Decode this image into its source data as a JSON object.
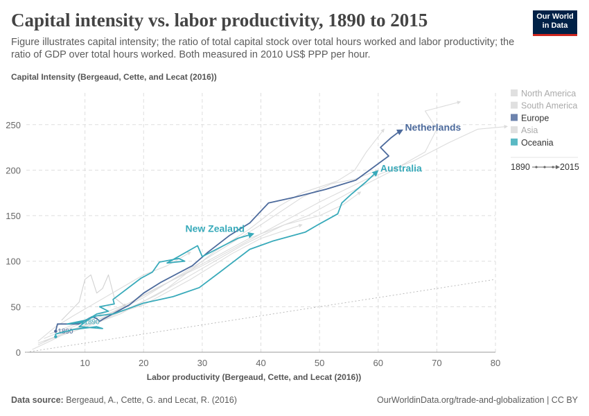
{
  "header": {
    "title": "Capital intensity vs. labor productivity, 1890 to 2015",
    "subtitle": "Figure illustrates capital intensity; the ratio of total capital stock over total hours worked and labor productivity; the ratio of GDP over total hours worked. Both measured in 2010 US$ PPP per hour.",
    "logo": "Our World in Data"
  },
  "footer": {
    "source_label": "Data source:",
    "source": "Bergeaud, A., Cette, G. and Lecat, R. (2016)",
    "url": "OurWorldinData.org/trade-and-globalization | CC BY"
  },
  "chart_data": {
    "type": "line",
    "xlabel": "Labor productivity (Bergeaud, Cette, and Lecat (2016))",
    "ylabel": "Capital Intensity (Bergeaud, Cette, and Lecat (2016))",
    "xlim": [
      0,
      80
    ],
    "ylim": [
      0,
      270
    ],
    "xticks": [
      10,
      20,
      30,
      40,
      50,
      60,
      70,
      80
    ],
    "yticks": [
      0,
      50,
      100,
      150,
      200,
      250
    ],
    "grid": true,
    "legend_placement": "right",
    "legend": [
      {
        "label": "North America",
        "color": "#e0e0e0",
        "active": false
      },
      {
        "label": "South America",
        "color": "#e0e0e0",
        "active": false
      },
      {
        "label": "Europe",
        "color": "#6d83ad",
        "active": true
      },
      {
        "label": "Asia",
        "color": "#e0e0e0",
        "active": false
      },
      {
        "label": "Oceania",
        "color": "#5ab9c4",
        "active": true
      }
    ],
    "timeline": {
      "start": "1890",
      "end": "2015"
    },
    "reference_line": "y = x",
    "series": [
      {
        "name": "Netherlands",
        "region": "Europe",
        "color": "#4c6a9c",
        "start_label": "1890",
        "points": [
          [
            5,
            23
          ],
          [
            5.3,
            31
          ],
          [
            8.9,
            31
          ],
          [
            11.2,
            39
          ],
          [
            12,
            37
          ],
          [
            12.5,
            34
          ],
          [
            13,
            36
          ],
          [
            15.3,
            44
          ],
          [
            17.6,
            52
          ],
          [
            20,
            65
          ],
          [
            23,
            77
          ],
          [
            28.3,
            95
          ],
          [
            31,
            110
          ],
          [
            34.6,
            128
          ],
          [
            38.1,
            142
          ],
          [
            41.3,
            164
          ],
          [
            45.6,
            170
          ],
          [
            51.1,
            179
          ],
          [
            56.2,
            189
          ],
          [
            61.8,
            215.5
          ],
          [
            60.4,
            225
          ],
          [
            62.1,
            235
          ],
          [
            63.5,
            242
          ],
          [
            64.1,
            244
          ]
        ]
      },
      {
        "name": "Australia",
        "region": "Oceania",
        "color": "#38aaba",
        "start_label": "1890",
        "points": [
          [
            9.5,
            33
          ],
          [
            7,
            31
          ],
          [
            10,
            35
          ],
          [
            12,
            40
          ],
          [
            14.8,
            42
          ],
          [
            17,
            47
          ],
          [
            20,
            54
          ],
          [
            25,
            61
          ],
          [
            29.5,
            71
          ],
          [
            33,
            88
          ],
          [
            38.1,
            113
          ],
          [
            42,
            122
          ],
          [
            47.6,
            132
          ],
          [
            50,
            141
          ],
          [
            53.1,
            152
          ],
          [
            53.8,
            164
          ],
          [
            55.5,
            174
          ],
          [
            57.9,
            187
          ],
          [
            59.9,
            199
          ]
        ]
      },
      {
        "name": "New Zealand",
        "region": "Oceania",
        "color": "#38aaba",
        "points": [
          [
            5,
            17
          ],
          [
            5,
            20
          ],
          [
            8,
            25
          ],
          [
            12,
            28
          ],
          [
            13,
            26
          ],
          [
            9,
            28
          ],
          [
            11,
            38
          ],
          [
            12,
            42
          ],
          [
            14,
            45
          ],
          [
            12.5,
            50
          ],
          [
            15,
            53
          ],
          [
            14.8,
            58
          ],
          [
            19.5,
            81
          ],
          [
            21.5,
            88
          ],
          [
            22.7,
            99
          ],
          [
            26,
            103
          ],
          [
            27,
            100
          ],
          [
            24,
            98
          ],
          [
            29.2,
            117
          ],
          [
            30,
            105
          ],
          [
            33,
            115
          ],
          [
            36,
            125
          ],
          [
            38.7,
            130
          ]
        ]
      },
      {
        "region": "North America",
        "color": "#dcdcdc",
        "points": [
          [
            3,
            15
          ],
          [
            8,
            28
          ],
          [
            15,
            45
          ],
          [
            22,
            70
          ],
          [
            30,
            95
          ],
          [
            40,
            130
          ],
          [
            50,
            165
          ],
          [
            58,
            190
          ],
          [
            66,
            210
          ],
          [
            72,
            230
          ],
          [
            77,
            245
          ],
          [
            82,
            248
          ]
        ]
      },
      {
        "region": "North America",
        "color": "#dcdcdc",
        "points": [
          [
            4,
            20
          ],
          [
            10,
            35
          ],
          [
            18,
            55
          ],
          [
            28,
            90
          ],
          [
            38,
            125
          ],
          [
            48,
            150
          ],
          [
            55,
            175
          ],
          [
            62,
            198
          ],
          [
            68,
            220
          ],
          [
            70,
            245
          ],
          [
            68,
            265
          ],
          [
            74,
            275
          ]
        ]
      },
      {
        "region": "Asia",
        "color": "#d2d2d2",
        "points": [
          [
            6,
            35
          ],
          [
            9,
            55
          ],
          [
            10,
            80
          ],
          [
            11,
            85
          ],
          [
            12,
            65
          ],
          [
            13,
            70
          ],
          [
            14,
            85
          ],
          [
            15,
            60
          ],
          [
            17,
            50
          ]
        ]
      },
      {
        "region": "Europe",
        "color": "#dcdcdc",
        "points": [
          [
            2,
            8
          ],
          [
            6,
            20
          ],
          [
            12,
            35
          ],
          [
            20,
            60
          ],
          [
            30,
            100
          ],
          [
            40,
            140
          ],
          [
            47,
            170
          ],
          [
            52,
            185
          ],
          [
            56,
            190
          ],
          [
            60,
            200
          ]
        ]
      },
      {
        "region": "Europe",
        "color": "#dcdcdc",
        "points": [
          [
            3,
            12
          ],
          [
            9,
            25
          ],
          [
            16,
            42
          ],
          [
            24,
            70
          ],
          [
            32,
            110
          ],
          [
            38,
            135
          ],
          [
            43,
            160
          ],
          [
            47,
            175
          ],
          [
            53,
            188
          ],
          [
            56,
            200
          ],
          [
            58,
            220
          ],
          [
            61,
            245
          ]
        ]
      },
      {
        "region": "Europe",
        "color": "#dcdcdc",
        "points": [
          [
            2,
            10
          ],
          [
            7,
            22
          ],
          [
            14,
            38
          ],
          [
            22,
            62
          ],
          [
            30,
            92
          ],
          [
            37,
            118
          ],
          [
            44,
            140
          ],
          [
            50,
            150
          ],
          [
            54,
            162
          ],
          [
            57,
            176
          ]
        ]
      },
      {
        "region": "South America",
        "color": "#dcdcdc",
        "points": [
          [
            2,
            12
          ],
          [
            5,
            28
          ],
          [
            8,
            40
          ],
          [
            12,
            55
          ],
          [
            16,
            70
          ],
          [
            20,
            85
          ],
          [
            24,
            95
          ],
          [
            28,
            110
          ]
        ]
      },
      {
        "region": "Asia",
        "color": "#dcdcdc",
        "points": [
          [
            1,
            3
          ],
          [
            4,
            12
          ],
          [
            8,
            25
          ],
          [
            14,
            40
          ],
          [
            20,
            52
          ],
          [
            28,
            80
          ],
          [
            35,
            108
          ],
          [
            40,
            125
          ],
          [
            47,
            140
          ]
        ]
      }
    ]
  }
}
